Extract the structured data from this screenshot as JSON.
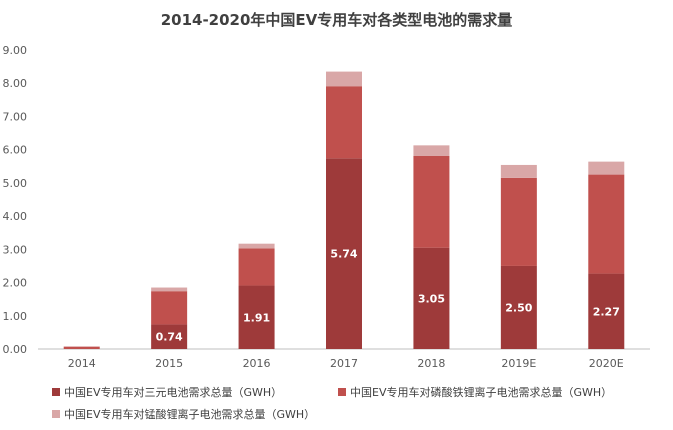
{
  "chart_data": {
    "type": "bar",
    "stacked": true,
    "title": "2014-2020年中国EV专用车对各类型电池的需求量",
    "categories": [
      "2014",
      "2015",
      "2016",
      "2017",
      "2018",
      "2019E",
      "2020E"
    ],
    "ylim": [
      0,
      9
    ],
    "yticks": [
      "0.00",
      "1.00",
      "2.00",
      "3.00",
      "4.00",
      "5.00",
      "6.00",
      "7.00",
      "8.00",
      "9.00"
    ],
    "grid": false,
    "legend_position": "bottom",
    "series": [
      {
        "name": "中国EV专用车对三元电池需求总量（GWH）",
        "color": "#9e3a3a",
        "values": [
          0.0,
          0.74,
          1.91,
          5.74,
          3.05,
          2.5,
          2.27
        ],
        "labels": [
          "",
          "0.74",
          "1.91",
          "5.74",
          "3.05",
          "2.50",
          "2.27"
        ]
      },
      {
        "name": "中国EV专用车对磷酸铁锂离子电池需求总量（GWH）",
        "color": "#c0504d",
        "values": [
          0.07,
          1.0,
          1.12,
          2.17,
          2.76,
          2.65,
          2.98
        ]
      },
      {
        "name": "中国EV专用车对锰酸锂离子电池需求总量（GWH）",
        "color": "#d9a7a7",
        "values": [
          0.01,
          0.11,
          0.14,
          0.44,
          0.32,
          0.39,
          0.39
        ]
      }
    ]
  }
}
